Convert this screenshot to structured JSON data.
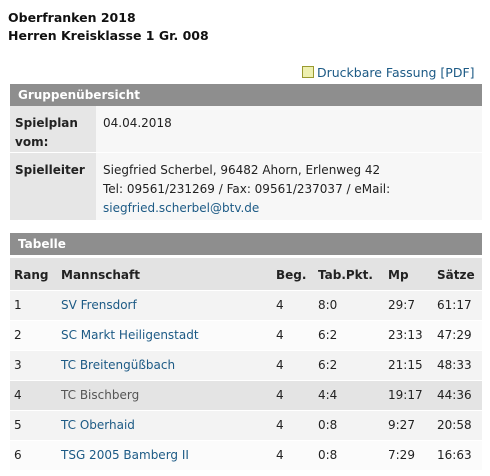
{
  "header": {
    "title": "Oberfranken 2018",
    "subtitle": "Herren Kreisklasse 1 Gr. 008"
  },
  "print_link": "Druckbare Fassung [PDF]",
  "overview": {
    "title": "Gruppenübersicht",
    "rows": [
      [
        "Spielplan vom:",
        [
          "04.04.2018"
        ]
      ],
      [
        "Spielleiter",
        [
          "Siegfried Scherbel, 96482 Ahorn, Erlenweg 42",
          "Tel: 09561/231269 / Fax: 09561/237037 / eMail:",
          "siegfried.scherbel@btv.de"
        ]
      ]
    ]
  },
  "table": {
    "title": "Tabelle",
    "columns": [
      "Rang",
      "Mannschaft",
      "Beg.",
      "Tab.Pkt.",
      "Mp",
      "Sätze"
    ],
    "rows": [
      [
        "1",
        "SV Frensdorf",
        "4",
        "8:0",
        "29:7",
        "61:17"
      ],
      [
        "2",
        "SC Markt Heiligenstadt",
        "4",
        "6:2",
        "23:13",
        "47:29"
      ],
      [
        "3",
        "TC Breitengüßbach",
        "4",
        "6:2",
        "21:15",
        "48:33"
      ],
      [
        "4",
        "TC Bischberg",
        "4",
        "4:4",
        "19:17",
        "44:36"
      ],
      [
        "5",
        "TC Oberhaid",
        "4",
        "0:8",
        "9:27",
        "20:58"
      ],
      [
        "6",
        "TSG 2005 Bamberg II",
        "4",
        "0:8",
        "7:29",
        "16:63"
      ]
    ]
  }
}
